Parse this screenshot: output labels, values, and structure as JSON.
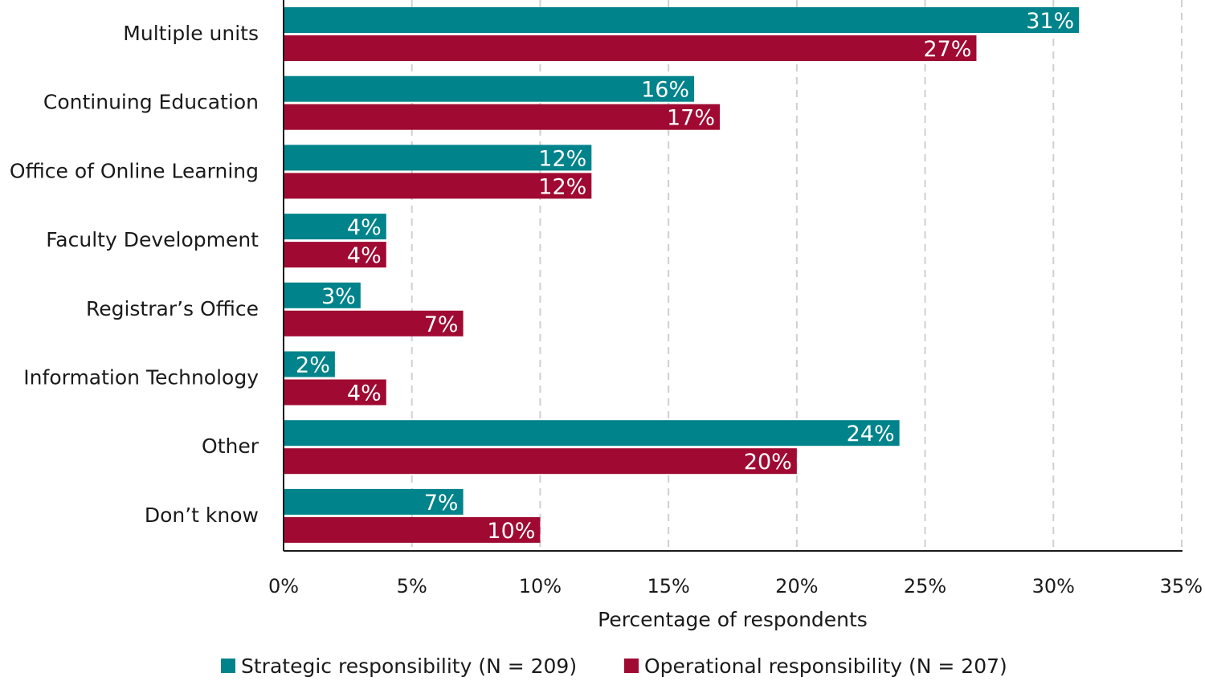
{
  "chart_data": {
    "type": "bar",
    "orientation": "horizontal",
    "categories": [
      "Multiple units",
      "Continuing Education",
      "Office of Online Learning",
      "Faculty Development",
      "Registrar’s Office",
      "Information Technology",
      "Other",
      "Don’t know"
    ],
    "series": [
      {
        "name": "Strategic responsibility (N = 209)",
        "color": "#00838a",
        "values": [
          31,
          16,
          12,
          4,
          3,
          2,
          24,
          7
        ]
      },
      {
        "name": "Operational responsibility (N = 207)",
        "color": "#a00a32",
        "values": [
          27,
          17,
          12,
          4,
          7,
          4,
          20,
          10
        ]
      }
    ],
    "value_labels": [
      [
        "31%",
        "16%",
        "12%",
        "4%",
        "3%",
        "2%",
        "24%",
        "7%"
      ],
      [
        "27%",
        "17%",
        "12%",
        "4%",
        "7%",
        "4%",
        "20%",
        "10%"
      ]
    ],
    "xlabel": "Percentage of respondents",
    "xlim": [
      0,
      35
    ],
    "xticks": [
      0,
      5,
      10,
      15,
      20,
      25,
      30,
      35
    ],
    "xtick_labels": [
      "0%",
      "5%",
      "10%",
      "15%",
      "20%",
      "25%",
      "30%",
      "35%"
    ],
    "grid": "vertical dashed",
    "legend_position": "bottom"
  }
}
